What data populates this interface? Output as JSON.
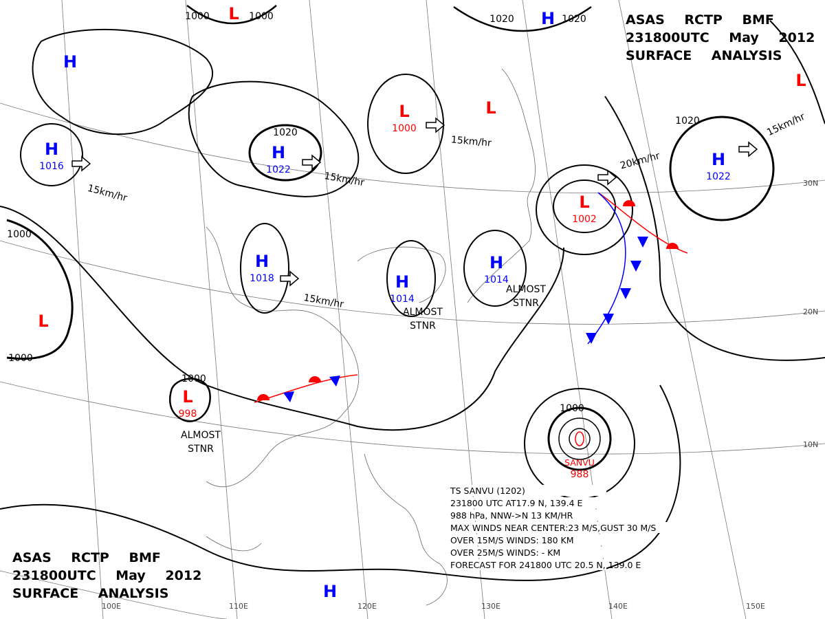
{
  "header_top": [
    "ASAS RCTP BMF",
    "231800UTC May 2012",
    "SURFACE ANALYSIS"
  ],
  "header_bottom": [
    "ASAS RCTP BMF",
    "231800UTC May 2012",
    "SURFACE ANALYSIS"
  ],
  "centers": [
    {
      "symbol": "L",
      "color": "red"
    },
    {
      "symbol": "H",
      "color": "blue"
    },
    {
      "symbol": "H",
      "color": "blue"
    },
    {
      "symbol": "H",
      "value": "1016",
      "color": "blue"
    },
    {
      "symbol": "H",
      "value": "1022",
      "color": "blue"
    },
    {
      "symbol": "L",
      "value": "1000",
      "color": "red"
    },
    {
      "symbol": "L",
      "color": "red"
    },
    {
      "symbol": "H",
      "value": "1022",
      "color": "blue"
    },
    {
      "symbol": "L",
      "color": "red"
    },
    {
      "symbol": "L",
      "value": "1002",
      "color": "red"
    },
    {
      "symbol": "H",
      "value": "1018",
      "color": "blue"
    },
    {
      "symbol": "H",
      "value": "1014",
      "color": "blue"
    },
    {
      "symbol": "H",
      "value": "1014",
      "color": "blue"
    },
    {
      "symbol": "L",
      "color": "red"
    },
    {
      "symbol": "L",
      "value": "998",
      "color": "red"
    },
    {
      "symbol": "H",
      "color": "blue"
    }
  ],
  "isobar_labels": [
    "1000",
    "1000",
    "1020",
    "1020",
    "1020",
    "1020",
    "1000",
    "1000",
    "1000",
    "1000"
  ],
  "motion_labels": [
    "15km/hr",
    "15km/hr",
    "15km/hr",
    "15km/hr",
    "15km/hr",
    "20km/hr"
  ],
  "stationary_labels": [
    [
      "ALMOST",
      "STNR"
    ],
    [
      "ALMOST",
      "STNR"
    ],
    [
      "ALMOST",
      "STNR"
    ]
  ],
  "typhoon": {
    "name": "SANVU",
    "pressure": "988",
    "info": [
      "TS SANVU (1202)",
      "231800 UTC AT17.9 N, 139.4 E",
      "988 hPa, NNW->N 13 KM/HR",
      "MAX WINDS NEAR CENTER:23 M/S,GUST 30 M/S",
      "OVER 15M/S WINDS: 180 KM",
      "OVER 25M/S WINDS: - KM",
      "FORECAST FOR 241800 UTC 20.5 N, 139.0 E"
    ]
  },
  "latitude_labels": [
    "30N",
    "20N",
    "10N"
  ],
  "longitude_labels": [
    "100E",
    "110E",
    "120E",
    "130E",
    "140E",
    "150E"
  ]
}
